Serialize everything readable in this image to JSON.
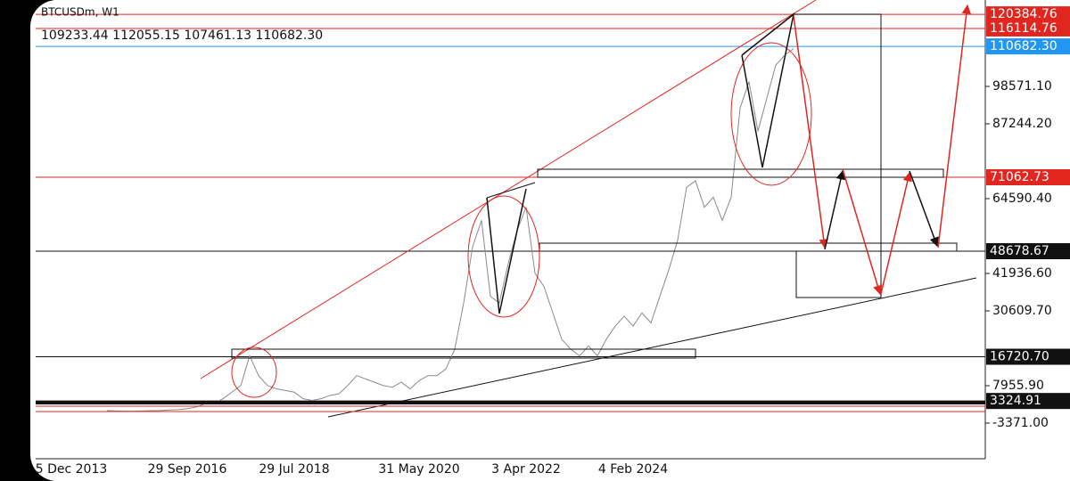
{
  "chart_data": {
    "type": "line",
    "title": "BTCUSDm, W1",
    "subtitle": "109233.44 112055.15 107461.13 110682.30",
    "color": "#8a8a8a",
    "categories": [
      null,
      null,
      null,
      null,
      "5 Dec 2013",
      null,
      null,
      null,
      null,
      null,
      null,
      null,
      null,
      null,
      null,
      null,
      null,
      "29 Sep 2016",
      null,
      null,
      null,
      null,
      null,
      null,
      null,
      null,
      null,
      null,
      null,
      "29 Jul 2018",
      null,
      null,
      null,
      null,
      null,
      null,
      null,
      null,
      null,
      null,
      null,
      null,
      null,
      "31 May 2020",
      null,
      null,
      null,
      null,
      null,
      null,
      null,
      null,
      null,
      null,
      null,
      "3 Apr 2022",
      null,
      null,
      null,
      null,
      null,
      null,
      null,
      null,
      null,
      null,
      null,
      "4 Feb 2024",
      null,
      null,
      null,
      null,
      null,
      null,
      null,
      null,
      null,
      null,
      null,
      null,
      null,
      null,
      null,
      null,
      null,
      null
    ],
    "values": [
      null,
      null,
      null,
      null,
      null,
      null,
      null,
      null,
      400,
      300,
      250,
      250,
      300,
      400,
      450,
      600,
      700,
      1000,
      1500,
      2500,
      2700,
      4000,
      6000,
      8000,
      17000,
      11000,
      8000,
      7000,
      6500,
      6000,
      4000,
      3500,
      4000,
      5000,
      5500,
      8000,
      11000,
      10000,
      9000,
      8000,
      7500,
      9000,
      7000,
      9500,
      11000,
      11000,
      13000,
      19000,
      33000,
      50000,
      58000,
      35000,
      33000,
      45000,
      55000,
      62000,
      42000,
      38000,
      30000,
      22000,
      19000,
      17000,
      20000,
      17000,
      22000,
      26000,
      29000,
      26000,
      30000,
      27000,
      35000,
      43000,
      52000,
      68000,
      70000,
      62000,
      65000,
      58000,
      65000,
      92000,
      100000,
      85000,
      95000,
      105000,
      108000,
      110000
    ],
    "ylim": [
      -14160,
      124730
    ],
    "yticks": [
      {
        "value": 98571.1,
        "label": "98571.10"
      },
      {
        "value": 87244.2,
        "label": "87244.20"
      },
      {
        "value": 64590.4,
        "label": "64590.40"
      },
      {
        "value": 41936.6,
        "label": "41936.60"
      },
      {
        "value": 30609.7,
        "label": "30609.70"
      },
      {
        "value": 7955.9,
        "label": "7955.90"
      },
      {
        "value": -3371,
        "label": "-3371.00"
      }
    ],
    "levels": [
      {
        "value": 120384.76,
        "label": "120384.76",
        "color": "#e0261f"
      },
      {
        "value": 116114.76,
        "label": "116114.76",
        "color": "#e0261f"
      },
      {
        "value": 110682.3,
        "label": "110682.30",
        "color": "#2196f3"
      },
      {
        "value": 71062.73,
        "label": "71062.73",
        "color": "#e0261f"
      },
      {
        "value": 48678.67,
        "label": "48678.67",
        "color": "#111111"
      },
      {
        "value": 16720.7,
        "label": "16720.70",
        "color": "#111111"
      },
      {
        "value": 3324.91,
        "label": "3324.91",
        "color": "#111111"
      }
    ]
  }
}
